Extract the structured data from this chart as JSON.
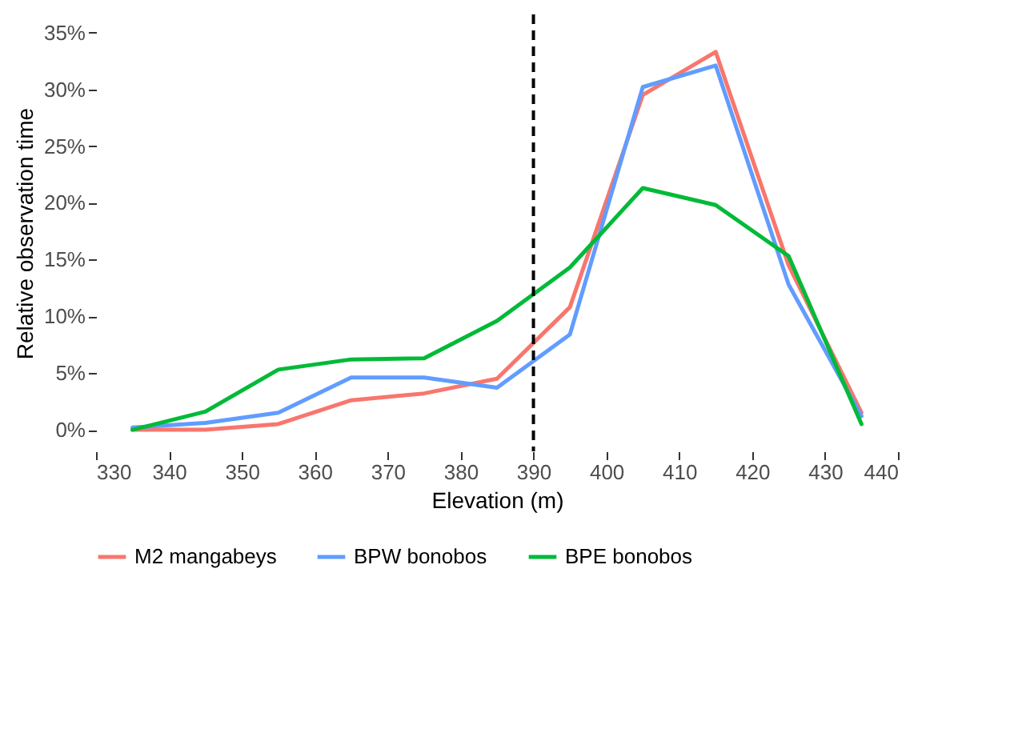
{
  "chart_data": {
    "type": "line",
    "xlabel": "Elevation (m)",
    "ylabel": "Relative observation time",
    "x": [
      335,
      345,
      355,
      365,
      375,
      385,
      395,
      405,
      415,
      425,
      435
    ],
    "series": [
      {
        "name": "M2 mangabeys",
        "color": "#f8766d",
        "values": [
          0,
          0,
          0.5,
          2.6,
          3.2,
          4.5,
          10.8,
          29.5,
          33.3,
          14.5,
          1.5
        ]
      },
      {
        "name": "BPW bonobos",
        "color": "#619cff",
        "values": [
          0.2,
          0.6,
          1.5,
          4.6,
          4.6,
          3.7,
          8.4,
          30.2,
          32.1,
          12.8,
          1.2
        ]
      },
      {
        "name": "BPE bonobos",
        "color": "#00ba38",
        "values": [
          0,
          1.6,
          5.3,
          6.2,
          6.3,
          9.6,
          14.3,
          21.3,
          19.8,
          15.3,
          0.5
        ]
      }
    ],
    "xlim": [
      330,
      440
    ],
    "xticks": [
      330,
      340,
      350,
      360,
      370,
      380,
      390,
      400,
      410,
      420,
      430,
      440
    ],
    "ylim": [
      -1.9,
      36.6
    ],
    "yticks": [
      {
        "value": 0,
        "label": "0%"
      },
      {
        "value": 5,
        "label": "5%"
      },
      {
        "value": 10,
        "label": "10%"
      },
      {
        "value": 15,
        "label": "15%"
      },
      {
        "value": 20,
        "label": "20%"
      },
      {
        "value": 25,
        "label": "25%"
      },
      {
        "value": 30,
        "label": "30%"
      },
      {
        "value": 35,
        "label": "35%"
      }
    ],
    "ref_lines": [
      {
        "axis": "x",
        "value": 390,
        "color": "#000000",
        "line_style": "dashed"
      }
    ],
    "grid": false,
    "legend": "bottom",
    "marker": "none",
    "line_style": "solid"
  }
}
